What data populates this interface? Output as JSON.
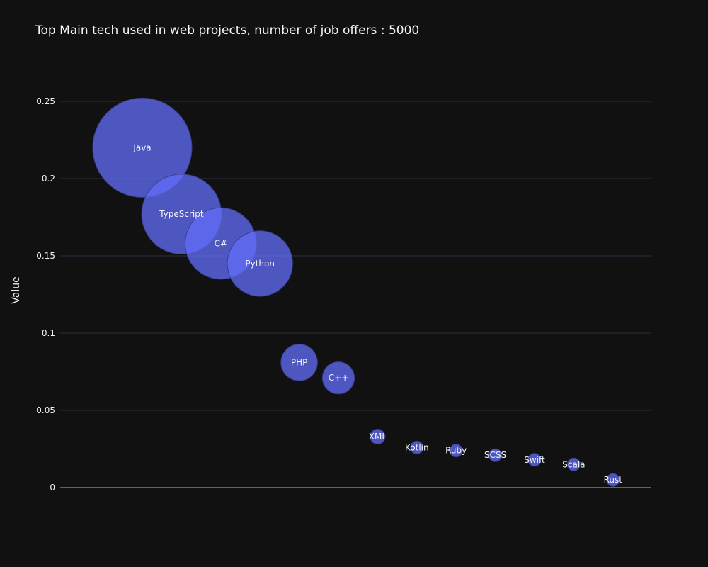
{
  "chart_data": {
    "type": "scatter",
    "title": "Top Main tech used in web projects, number of job offers : 5000",
    "xlabel": "",
    "ylabel": "Value",
    "ylim": [
      0,
      0.275
    ],
    "yticks": [
      0,
      0.05,
      0.1,
      0.15,
      0.2,
      0.25
    ],
    "ytick_labels": [
      "0",
      "0.05",
      "0.1",
      "0.15",
      "0.2",
      "0.25"
    ],
    "grid": true,
    "marker_color": "#636efa",
    "background_color": "#111111",
    "grid_color": "#283442",
    "points": [
      {
        "label": "Java",
        "y": 0.22
      },
      {
        "label": "TypeScript",
        "y": 0.177
      },
      {
        "label": "C#",
        "y": 0.158
      },
      {
        "label": "Python",
        "y": 0.145
      },
      {
        "label": "PHP",
        "y": 0.081
      },
      {
        "label": "C++",
        "y": 0.071
      },
      {
        "label": "XML",
        "y": 0.033
      },
      {
        "label": "Kotlin",
        "y": 0.026
      },
      {
        "label": "Ruby",
        "y": 0.024
      },
      {
        "label": "SCSS",
        "y": 0.021
      },
      {
        "label": "Swift",
        "y": 0.018
      },
      {
        "label": "Scala",
        "y": 0.015
      },
      {
        "label": "Rust",
        "y": 0.005
      }
    ]
  }
}
